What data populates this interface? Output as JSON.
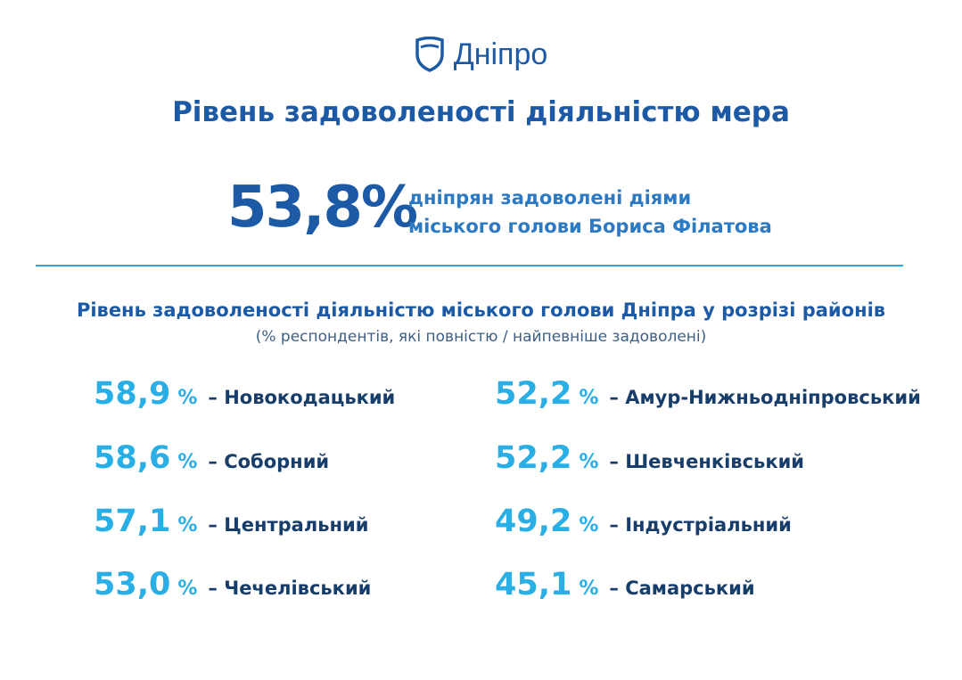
{
  "header": {
    "logo": "Дніпро",
    "title": "Рівень задоволеності діяльністю мера"
  },
  "headline": {
    "value": "53,8%",
    "caption": [
      "дніпрян задоволені діями",
      "міського голови Бориса Філатова"
    ]
  },
  "section": {
    "title": "Рівень задоволеності діяльністю міського голови Дніпра у розрізі районів",
    "subtitle": "(% респондентів, які повністю / найпевніше задоволені)"
  },
  "districts": [
    [
      {
        "value": "58,9",
        "unit": "%",
        "label": "– Новокодацький"
      },
      {
        "value": "58,6",
        "unit": "%",
        "label": "– Соборний"
      },
      {
        "value": "57,1",
        "unit": "%",
        "label": "– Центральний"
      },
      {
        "value": "53,0",
        "unit": "%",
        "label": "– Чечелівський"
      }
    ],
    [
      {
        "value": "52,2",
        "unit": "%",
        "label": "– Амур-Нижньодніпровський"
      },
      {
        "value": "52,2",
        "unit": "%",
        "label": "– Шевченківський"
      },
      {
        "value": "49,2",
        "unit": "%",
        "label": "– Індустріальний"
      },
      {
        "value": "45,1",
        "unit": "%",
        "label": "– Самарський"
      }
    ]
  ]
}
